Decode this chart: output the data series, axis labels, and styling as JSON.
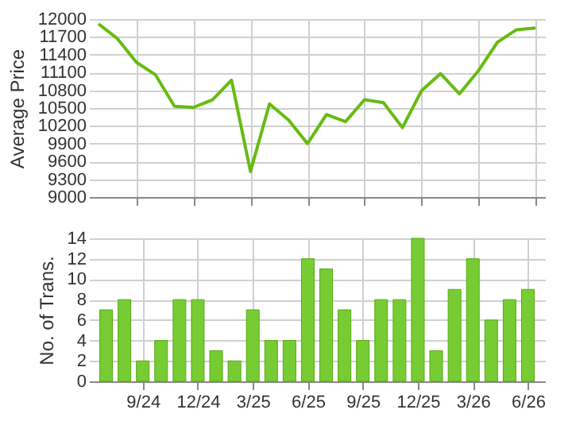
{
  "chart_data": [
    {
      "type": "line",
      "ylabel": "Average Price",
      "categories": [
        null,
        null,
        null,
        null,
        null,
        null,
        null,
        null,
        null,
        null,
        null,
        null,
        null,
        null,
        null,
        null,
        null,
        null,
        null,
        null,
        null,
        null,
        null,
        null
      ],
      "series": [
        {
          "color": "#66bb11",
          "values": [
            11920,
            11670,
            11270,
            11060,
            10530,
            10510,
            10640,
            10970,
            9430,
            10570,
            10300,
            9900,
            10390,
            10270,
            10640,
            10590,
            10170,
            10790,
            11080,
            10740,
            11130,
            11610,
            11820,
            11850
          ]
        }
      ],
      "ylim": [
        9000,
        12000
      ],
      "yticks": [
        9000,
        9300,
        9600,
        9900,
        10200,
        10500,
        10800,
        11100,
        11400,
        11700,
        12000
      ],
      "grid": true,
      "tick_labels": "y",
      "marker": "none",
      "line_style": "solid"
    },
    {
      "type": "bar",
      "ylabel": "No. of Trans.",
      "categories": [
        null,
        null,
        "9/24",
        null,
        null,
        "12/24",
        null,
        null,
        "3/25",
        null,
        null,
        "6/25",
        null,
        null,
        "9/25",
        null,
        null,
        "12/25",
        null,
        null,
        "3/26",
        null,
        null,
        "6/26"
      ],
      "series": [
        {
          "color": "#77cc33",
          "values": [
            7,
            8,
            2,
            4,
            8,
            8,
            3,
            2,
            7,
            4,
            4,
            12,
            11,
            7,
            4,
            8,
            8,
            14,
            3,
            9,
            12,
            6,
            8,
            9
          ]
        }
      ],
      "ylim": [
        0,
        14
      ],
      "yticks": [
        0,
        2,
        4,
        6,
        8,
        10,
        12,
        14
      ],
      "grid": true
    }
  ]
}
